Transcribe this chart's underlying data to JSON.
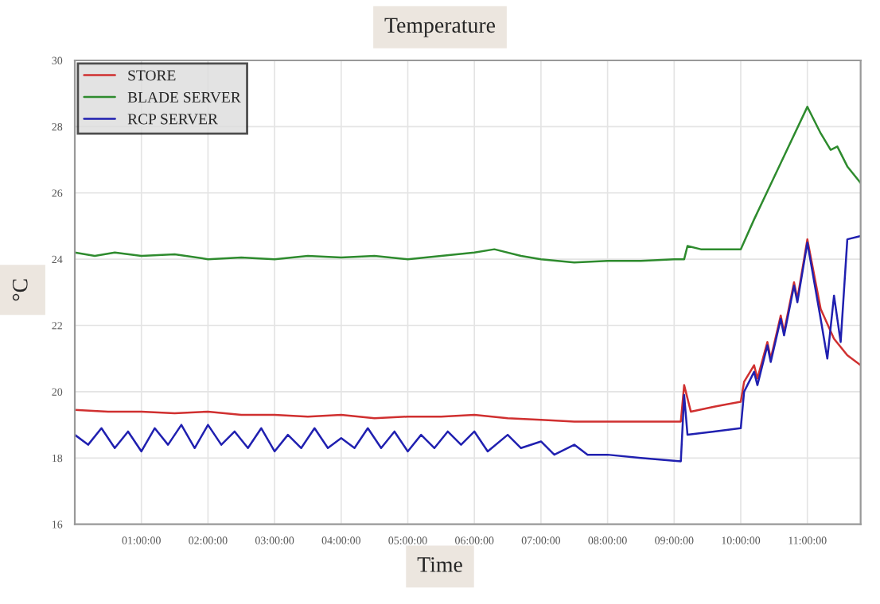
{
  "chart_data": {
    "type": "line",
    "title": "Temperature",
    "xlabel": "Time",
    "ylabel": "°C",
    "xlim": [
      0,
      11.8
    ],
    "ylim": [
      16,
      30
    ],
    "yticks": [
      16,
      18,
      20,
      22,
      24,
      26,
      28,
      30
    ],
    "xticks": [
      {
        "value": 1,
        "label": "01:00:00"
      },
      {
        "value": 2,
        "label": "02:00:00"
      },
      {
        "value": 3,
        "label": "03:00:00"
      },
      {
        "value": 4,
        "label": "04:00:00"
      },
      {
        "value": 5,
        "label": "05:00:00"
      },
      {
        "value": 6,
        "label": "06:00:00"
      },
      {
        "value": 7,
        "label": "07:00:00"
      },
      {
        "value": 8,
        "label": "08:00:00"
      },
      {
        "value": 9,
        "label": "09:00:00"
      },
      {
        "value": 10,
        "label": "10:00:00"
      },
      {
        "value": 11,
        "label": "11:00:00"
      }
    ],
    "grid": true,
    "legend": "top left",
    "marker": "none",
    "line_style": "solid",
    "series": [
      {
        "name": "STORE",
        "color": "#d03030",
        "x": [
          0,
          0.5,
          1,
          1.5,
          2,
          2.5,
          3,
          3.5,
          4,
          4.5,
          5,
          5.5,
          6,
          6.5,
          7,
          7.5,
          8,
          8.5,
          9.1,
          9.15,
          9.25,
          9.6,
          10,
          10.05,
          10.2,
          10.25,
          10.4,
          10.45,
          10.6,
          10.65,
          10.8,
          10.85,
          11.0,
          11.2,
          11.4,
          11.6,
          11.8
        ],
        "values": [
          19.45,
          19.4,
          19.4,
          19.35,
          19.4,
          19.3,
          19.3,
          19.25,
          19.3,
          19.2,
          19.25,
          19.25,
          19.3,
          19.2,
          19.15,
          19.1,
          19.1,
          19.1,
          19.1,
          20.2,
          19.4,
          19.55,
          19.7,
          20.3,
          20.8,
          20.4,
          21.5,
          21.0,
          22.3,
          21.8,
          23.3,
          22.8,
          24.6,
          22.5,
          21.6,
          21.1,
          20.8
        ]
      },
      {
        "name": "BLADE SERVER",
        "color": "#2e8b2e",
        "x": [
          0,
          0.3,
          0.6,
          1,
          1.5,
          2,
          2.5,
          3,
          3.5,
          4,
          4.5,
          5,
          5.5,
          6,
          6.3,
          6.7,
          7,
          7.5,
          8,
          8.5,
          9,
          9.15,
          9.2,
          9.4,
          10,
          10.2,
          10.6,
          11.0,
          11.2,
          11.35,
          11.45,
          11.6,
          11.8
        ],
        "values": [
          24.2,
          24.1,
          24.2,
          24.1,
          24.15,
          24.0,
          24.05,
          24.0,
          24.1,
          24.05,
          24.1,
          24.0,
          24.1,
          24.2,
          24.3,
          24.1,
          24.0,
          23.9,
          23.95,
          23.95,
          24.0,
          24.0,
          24.4,
          24.3,
          24.3,
          25.2,
          26.9,
          28.6,
          27.8,
          27.3,
          27.4,
          26.8,
          26.3
        ]
      },
      {
        "name": "RCP SERVER",
        "color": "#2020b0",
        "x": [
          0,
          0.2,
          0.4,
          0.6,
          0.8,
          1,
          1.2,
          1.4,
          1.6,
          1.8,
          2,
          2.2,
          2.4,
          2.6,
          2.8,
          3,
          3.2,
          3.4,
          3.6,
          3.8,
          4,
          4.2,
          4.4,
          4.6,
          4.8,
          5,
          5.2,
          5.4,
          5.6,
          5.8,
          6,
          6.2,
          6.5,
          6.7,
          7,
          7.2,
          7.5,
          7.7,
          8,
          8.5,
          9.1,
          9.15,
          9.2,
          9.6,
          10,
          10.05,
          10.2,
          10.25,
          10.4,
          10.45,
          10.6,
          10.65,
          10.8,
          10.85,
          11.0,
          11.2,
          11.3,
          11.4,
          11.5,
          11.6,
          11.8
        ],
        "values": [
          18.7,
          18.4,
          18.9,
          18.3,
          18.8,
          18.2,
          18.9,
          18.4,
          19.0,
          18.3,
          19.0,
          18.4,
          18.8,
          18.3,
          18.9,
          18.2,
          18.7,
          18.3,
          18.9,
          18.3,
          18.6,
          18.3,
          18.9,
          18.3,
          18.8,
          18.2,
          18.7,
          18.3,
          18.8,
          18.4,
          18.8,
          18.2,
          18.7,
          18.3,
          18.5,
          18.1,
          18.4,
          18.1,
          18.1,
          18.0,
          17.9,
          19.9,
          18.7,
          18.8,
          18.9,
          20.0,
          20.6,
          20.2,
          21.4,
          20.9,
          22.2,
          21.7,
          23.2,
          22.7,
          24.5,
          22.2,
          21.0,
          22.9,
          21.5,
          24.6,
          24.7
        ]
      }
    ]
  }
}
